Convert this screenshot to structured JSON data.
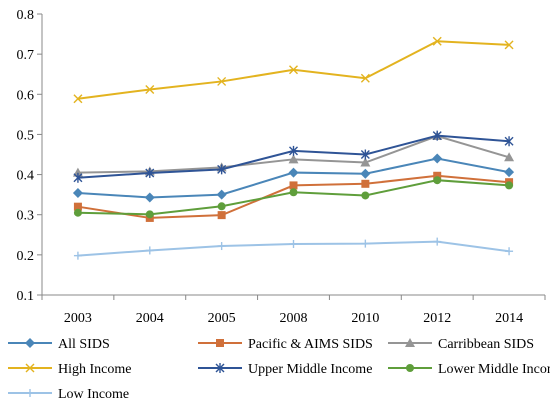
{
  "chart_data": {
    "type": "line",
    "title": "",
    "xlabel": "",
    "ylabel": "",
    "categories": [
      "2003",
      "2004",
      "2005",
      "2008",
      "2010",
      "2012",
      "2014"
    ],
    "ylim": [
      0.1,
      0.8
    ],
    "yticks": [
      "0.1",
      "0.2",
      "0.3",
      "0.4",
      "0.5",
      "0.6",
      "0.7",
      "0.8"
    ],
    "grid": false,
    "legend": "bottom",
    "series": [
      {
        "name": "All SIDS",
        "color": "#4a86b8",
        "marker": "diamond",
        "values": [
          0.354,
          0.343,
          0.35,
          0.405,
          0.402,
          0.44,
          0.406
        ]
      },
      {
        "name": "Pacific & AIMS SIDS",
        "color": "#d0703a",
        "marker": "square",
        "values": [
          0.32,
          0.292,
          0.299,
          0.373,
          0.377,
          0.397,
          0.381
        ]
      },
      {
        "name": "Carribbean SIDS",
        "color": "#959595",
        "marker": "triangle",
        "values": [
          0.405,
          0.408,
          0.418,
          0.438,
          0.43,
          0.496,
          0.443
        ]
      },
      {
        "name": "High Income",
        "color": "#e3b31f",
        "marker": "x",
        "values": [
          0.589,
          0.612,
          0.632,
          0.661,
          0.64,
          0.732,
          0.723
        ]
      },
      {
        "name": "Upper Middle Income",
        "color": "#2f5496",
        "marker": "star",
        "values": [
          0.392,
          0.404,
          0.413,
          0.459,
          0.45,
          0.497,
          0.483
        ]
      },
      {
        "name": "Lower Middle Income",
        "color": "#5f9e3b",
        "marker": "circle",
        "values": [
          0.305,
          0.301,
          0.321,
          0.356,
          0.348,
          0.386,
          0.373
        ]
      },
      {
        "name": "Low Income",
        "color": "#9dc3e6",
        "marker": "plus",
        "values": [
          0.198,
          0.211,
          0.222,
          0.227,
          0.228,
          0.233,
          0.209
        ]
      }
    ]
  }
}
